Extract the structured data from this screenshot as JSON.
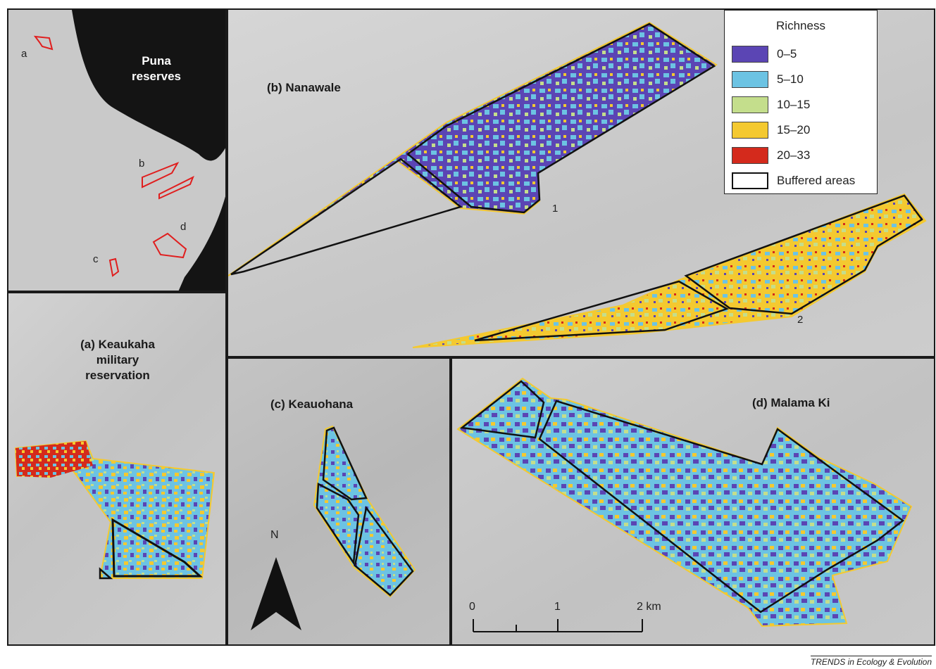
{
  "overview": {
    "title_line1": "Puna",
    "title_line2": "reserves",
    "site_labels": [
      "a",
      "b",
      "c",
      "d"
    ]
  },
  "panels": {
    "a": {
      "line1": "(a) Keaukaha",
      "line2": "military",
      "line3": "reservation"
    },
    "b": {
      "title": "(b) Nanawale",
      "unit1": "1",
      "unit2": "2"
    },
    "c": {
      "title": "(c) Keauohana",
      "north": "N"
    },
    "d": {
      "title": "(d) Malama Ki"
    }
  },
  "legend": {
    "title": "Richness",
    "items": [
      {
        "label": "0–5",
        "color": "#5b45b4"
      },
      {
        "label": "5–10",
        "color": "#6cc3e3"
      },
      {
        "label": "10–15",
        "color": "#c4de8c"
      },
      {
        "label": "15–20",
        "color": "#f4c930"
      },
      {
        "label": "20–33",
        "color": "#d42a1c"
      },
      {
        "label": "Buffered areas",
        "color": "#ffffff"
      }
    ]
  },
  "scale_bar": {
    "ticks": [
      "0",
      "1",
      "2 km"
    ]
  },
  "credit": "TRENDS in Ecology & Evolution"
}
